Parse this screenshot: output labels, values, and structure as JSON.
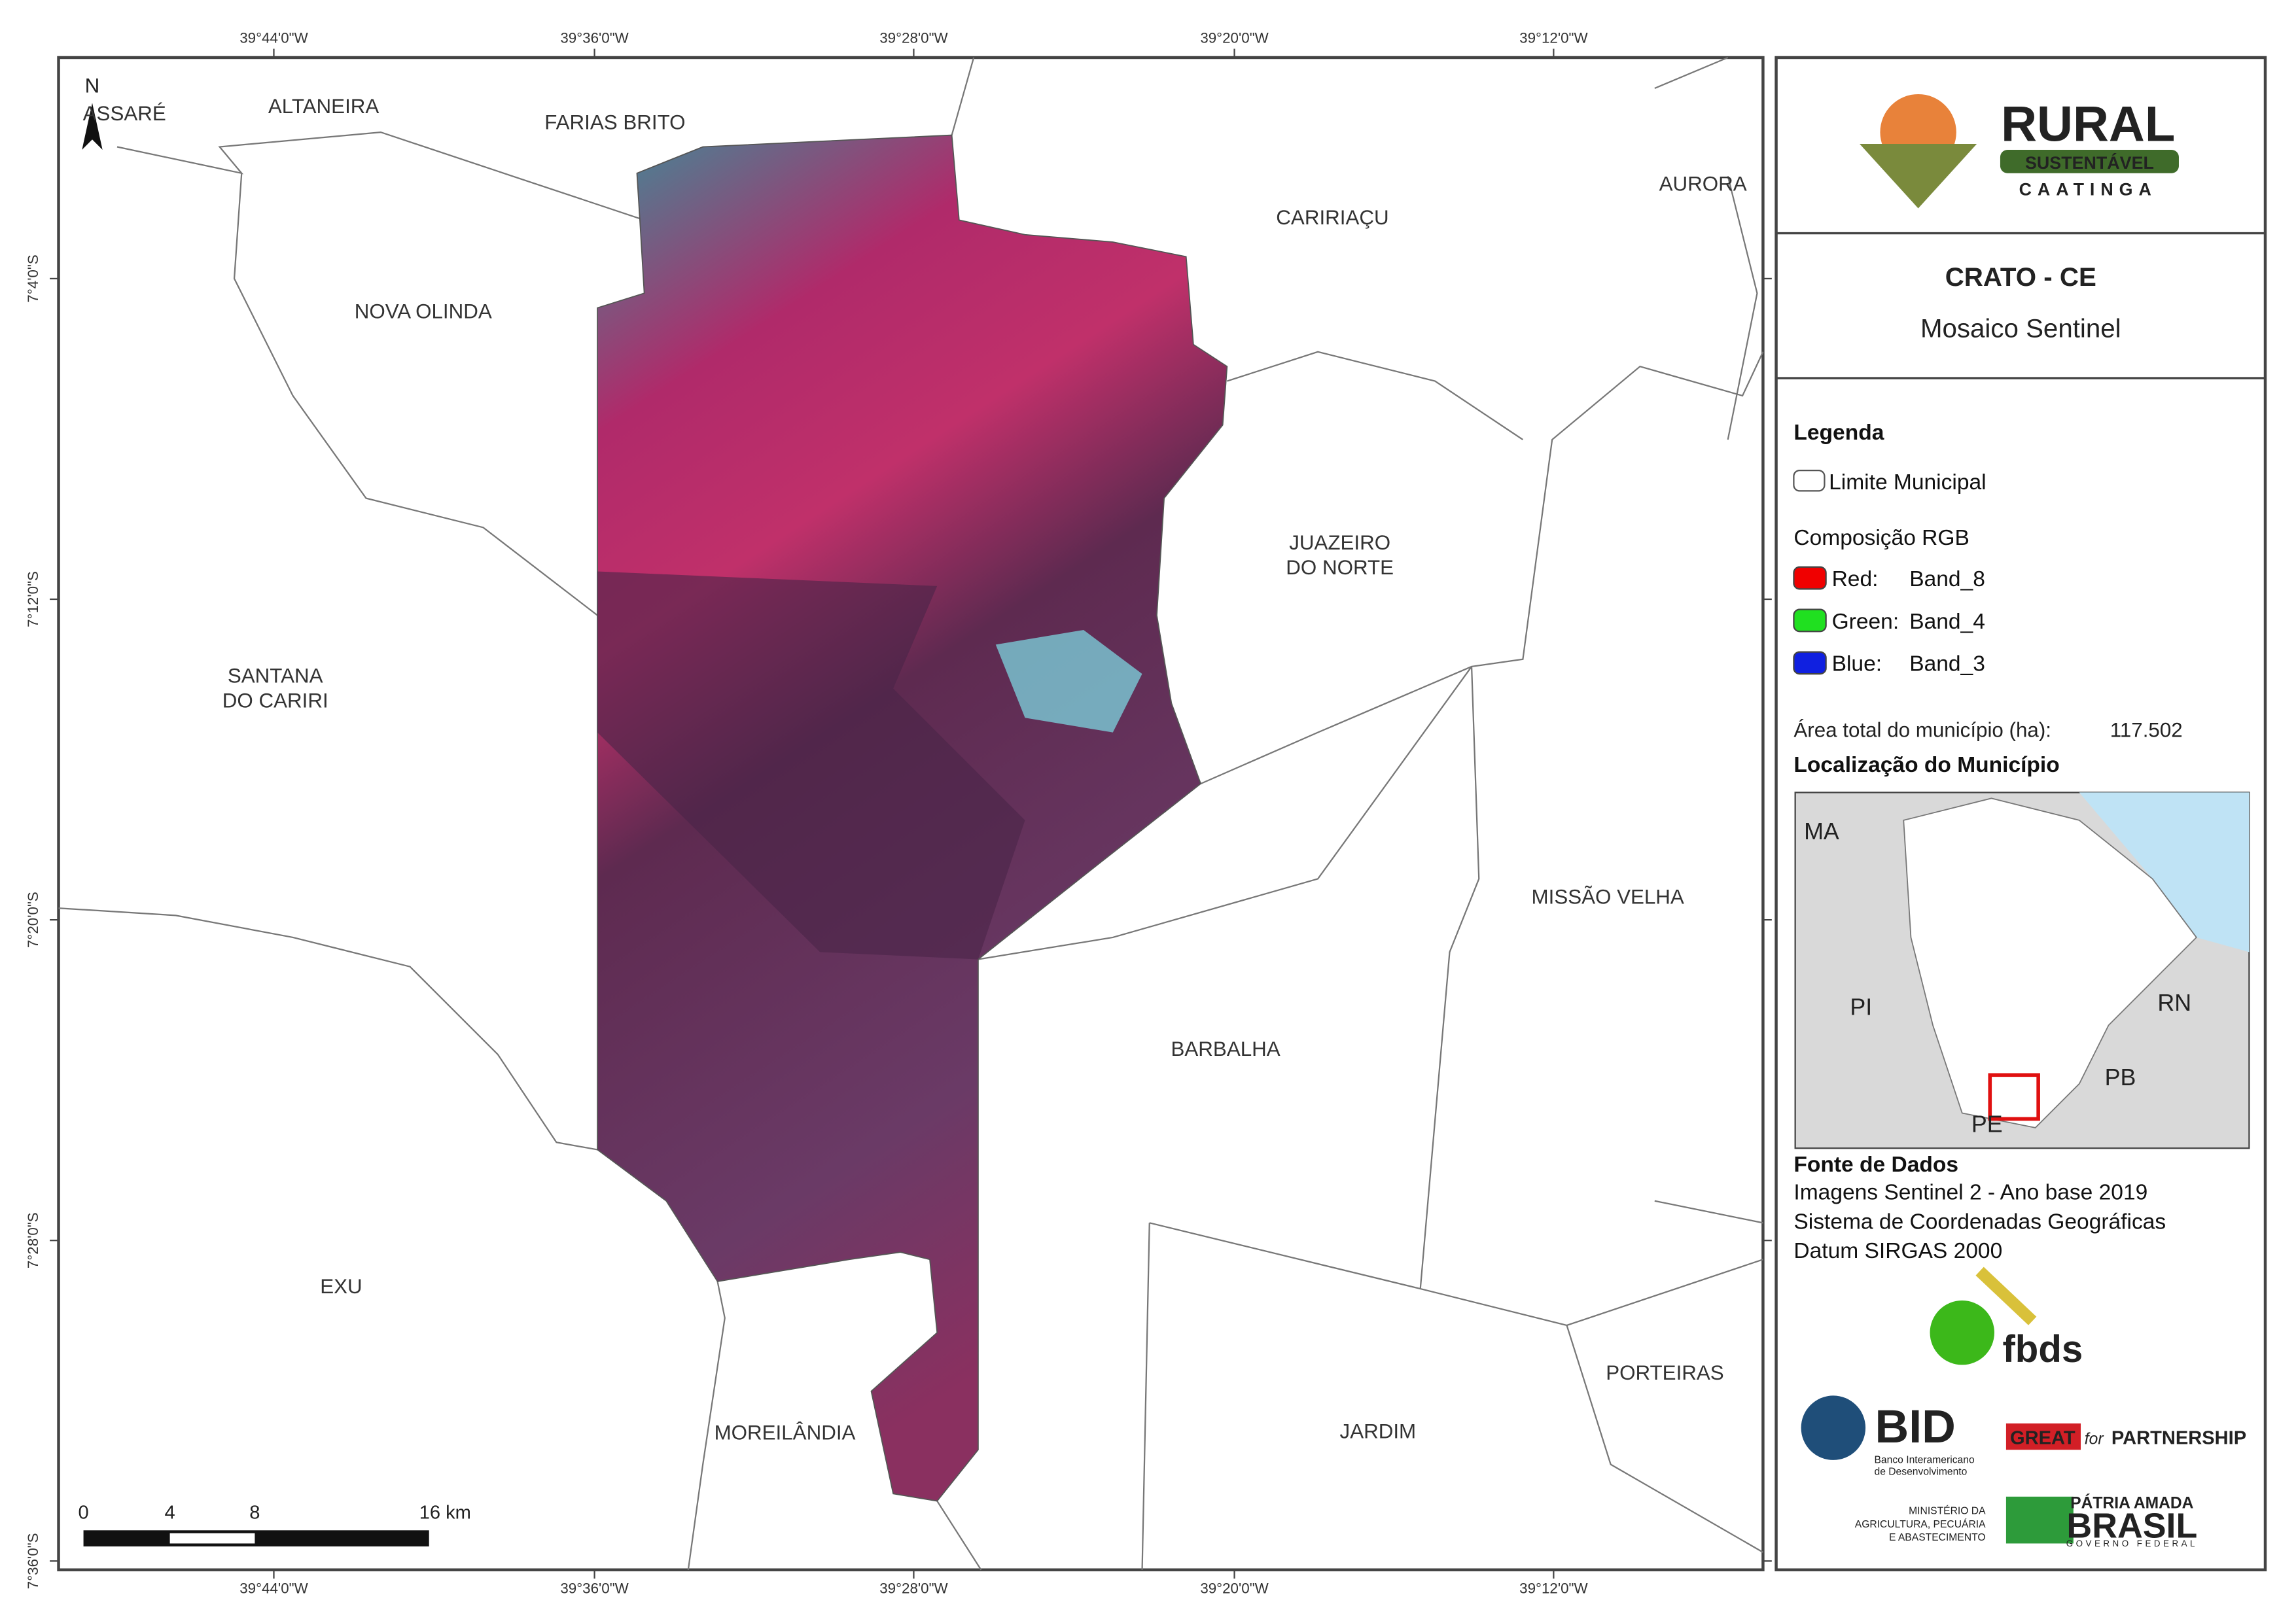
{
  "map": {
    "north": "N",
    "top_ticks": [
      "39°44'0\"W",
      "39°36'0\"W",
      "39°28'0\"W",
      "39°20'0\"W",
      "39°12'0\"W"
    ],
    "left_ticks": [
      "7°4'0\"S",
      "7°12'0\"S",
      "7°20'0\"S",
      "7°28'0\"S",
      "7°36'0\"S"
    ],
    "municipalities": [
      [
        "ASSARÉ"
      ],
      [
        "ALTANEIRA"
      ],
      [
        "FARIAS BRITO"
      ],
      [
        "CARIRIAÇU"
      ],
      [
        "AURORA"
      ],
      [
        "NOVA OLINDA"
      ],
      [
        "JUAZEIRO",
        "DO NORTE"
      ],
      [
        "SANTANA",
        "DO CARIRI"
      ],
      [
        "MISSÃO VELHA"
      ],
      [
        "BARBALHA"
      ],
      [
        "EXU"
      ],
      [
        "MOREILÂNDIA"
      ],
      [
        "JARDIM"
      ],
      [
        "PORTEIRAS"
      ]
    ],
    "scale": [
      "0",
      "4",
      "8",
      "16 km"
    ]
  },
  "panel": {
    "logo": {
      "name": "RURAL",
      "band": "SUSTENTÁVEL",
      "sub": "CAATINGA"
    },
    "title": "CRATO - CE",
    "subtitle": "Mosaico Sentinel",
    "legend": {
      "heading": "Legenda",
      "boundary": "Limite Municipal",
      "rgb_heading": "Composição RGB",
      "bands": [
        [
          "Red:",
          "Band_8"
        ],
        [
          "Green:",
          "Band_4"
        ],
        [
          "Blue:",
          "Band_3"
        ]
      ]
    },
    "area": {
      "label": "Área total do município (ha):",
      "value": "117.502"
    },
    "location_heading": "Localização do Município",
    "inset_labels": [
      "MA",
      "PI",
      "RN",
      "PB",
      "PE"
    ],
    "sources": {
      "heading": "Fonte de Dados",
      "lines": [
        "Imagens Sentinel 2 - Ano base 2019",
        "Sistema de Coordenadas Geográficas",
        "Datum SIRGAS 2000"
      ]
    },
    "partners": {
      "fbds": "fbds",
      "bid": "BID",
      "bid_name": [
        "Banco Interamericano",
        "de Desenvolvimento"
      ],
      "great": "GREAT",
      "for": "for",
      "partnership": "PARTNERSHIP",
      "ministry": [
        "MINISTÉRIO DA",
        "AGRICULTURA, PECUÁRIA",
        "E ABASTECIMENTO"
      ],
      "brasil_top": "PÁTRIA AMADA",
      "brasil": "BRASIL",
      "gov": "GOVERNO FEDERAL"
    }
  }
}
